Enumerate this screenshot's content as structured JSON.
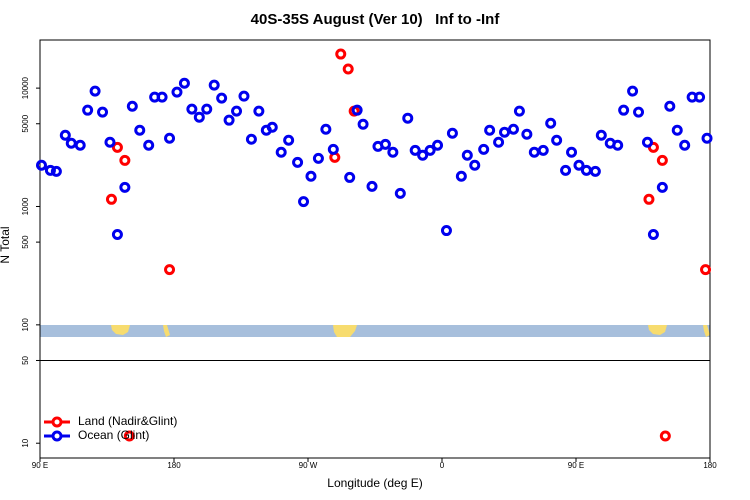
{
  "chart_data": {
    "type": "scatter",
    "title": "40S-35S August (Ver 10)   Inf to -Inf",
    "x_label": "Longitude (deg E)",
    "y_label": "N Total",
    "log_y": true,
    "legend": "bottom-left",
    "xlim": [
      90,
      540
    ],
    "xticks": [
      {
        "value": 90,
        "label": "90 E"
      },
      {
        "value": 180,
        "label": "180"
      },
      {
        "value": 270,
        "label": "90 W"
      },
      {
        "value": 360,
        "label": "0"
      },
      {
        "value": 450,
        "label": "90 E"
      },
      {
        "value": 540,
        "label": "180"
      }
    ],
    "ylim": [
      7.5,
      25500
    ],
    "yticks": [
      10,
      50,
      100,
      500,
      1000,
      5000,
      10000
    ],
    "series": [
      {
        "name": "Land (Nadir&Glint)",
        "color": "#ff0000",
        "x": [
          138,
          142,
          147,
          150,
          177,
          288,
          292,
          297,
          301,
          499,
          502,
          508,
          510,
          537
        ],
        "values": [
          1150,
          3160,
          2450,
          11.5,
          293,
          2600,
          19400,
          14500,
          6390,
          1150,
          3160,
          2450,
          11.5,
          293
        ]
      },
      {
        "name": "Ocean (Glint)",
        "color": "#0000ee",
        "x": [
          91,
          97,
          101,
          107,
          111,
          117,
          122,
          127,
          132,
          137,
          142,
          147,
          152,
          157,
          163,
          167,
          172,
          177,
          182,
          187,
          192,
          197,
          202,
          207,
          212,
          217,
          222,
          227,
          232,
          237,
          242,
          246,
          252,
          257,
          263,
          267,
          272,
          277,
          282,
          287,
          298,
          303,
          307,
          313,
          317,
          322,
          327,
          332,
          337,
          342,
          347,
          352,
          357,
          363,
          367,
          373,
          377,
          382,
          388,
          392,
          398,
          402,
          408,
          412,
          417,
          422,
          428,
          433,
          437,
          443,
          447,
          452,
          457,
          463,
          467,
          473,
          478,
          482,
          488,
          492,
          498,
          502,
          508,
          513,
          518,
          523,
          528,
          533,
          538
        ],
        "values": [
          2230,
          2020,
          1980,
          4000,
          3420,
          3290,
          6510,
          9440,
          6270,
          3490,
          580,
          1450,
          7030,
          4410,
          3290,
          8390,
          8390,
          3770,
          9250,
          11000,
          6640,
          5680,
          6640,
          10600,
          8230,
          5360,
          6390,
          8550,
          3700,
          6390,
          4410,
          4670,
          2870,
          3630,
          2360,
          1100,
          1800,
          2550,
          4490,
          3040,
          1760,
          6510,
          4950,
          1480,
          3220,
          3350,
          2870,
          1290,
          5570,
          2980,
          2710,
          2980,
          3290,
          626,
          4160,
          1800,
          2710,
          2230,
          3040,
          4410,
          3490,
          4240,
          4490,
          6390,
          4080,
          2870,
          2980,
          5050,
          3630,
          2020,
          2870,
          2230,
          2020,
          1980,
          4000,
          3420,
          3290,
          6510,
          9440,
          6270,
          3490,
          580,
          1450,
          7030,
          4410,
          3290,
          8390,
          8390,
          3770
        ]
      }
    ]
  }
}
